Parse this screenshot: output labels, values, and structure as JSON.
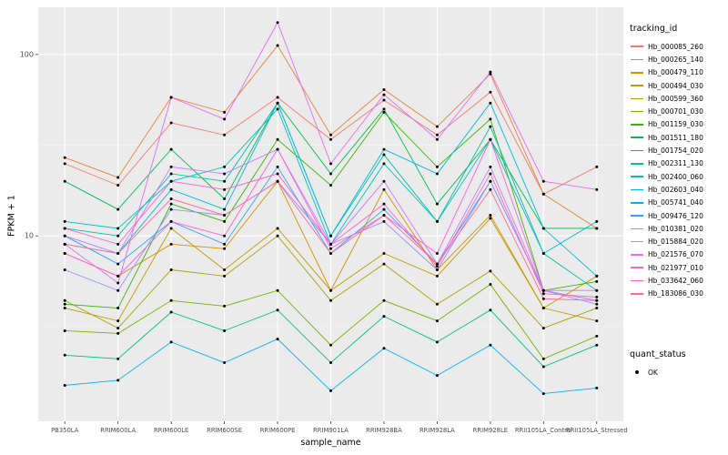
{
  "chart_data": {
    "type": "line",
    "title": "",
    "xlabel": "sample_name",
    "ylabel": "FPKM + 1",
    "y_scale": "log10",
    "y_ticks": [
      10,
      100
    ],
    "y_minor_ticks": [
      3.1623,
      31.623
    ],
    "ylim": [
      0.95,
      182
    ],
    "grid": true,
    "panel_bg": "#EBEBEB",
    "grid_major_color": "#FFFFFF",
    "grid_minor_color": "#F5F5F5",
    "point_color": "#000000",
    "legend_position": "right",
    "legend_title": "tracking_id",
    "quant_legend": {
      "title": "quant_status",
      "items": [
        "OK"
      ]
    },
    "categories": [
      "PB350LA",
      "RRIM600LA",
      "RRIM600LE",
      "RRIM600SE",
      "RRIM600PE",
      "RRIM901LA",
      "RRIM928BA",
      "RRIM928LA",
      "RRIM928LE",
      "RRII105LA_Control",
      "RRII105LA_Stressed"
    ],
    "series": [
      {
        "name": "Hb_000085_260",
        "color": "#F8766D",
        "values": [
          25,
          19,
          42,
          36,
          58,
          34,
          56,
          36,
          62,
          17,
          24
        ]
      },
      {
        "name": "Hb_000265_140",
        "color": "#EA8331",
        "values": [
          27,
          21,
          58,
          48,
          112,
          36,
          64,
          40,
          78,
          17,
          11
        ]
      },
      {
        "name": "Hb_000479_110",
        "color": "#D89000",
        "values": [
          8,
          6,
          9,
          8.5,
          20,
          5,
          18,
          6.5,
          13,
          4,
          3.4
        ]
      },
      {
        "name": "Hb_000494_030",
        "color": "#C09B00",
        "values": [
          4,
          3.4,
          11,
          6.5,
          11,
          5,
          8,
          6,
          12.5,
          4,
          6
        ]
      },
      {
        "name": "Hb_000599_360",
        "color": "#A3A500",
        "values": [
          4.4,
          3.1,
          6.5,
          6,
          10,
          4.4,
          7,
          4.2,
          6.4,
          3.1,
          4
        ]
      },
      {
        "name": "Hb_000701_030",
        "color": "#7CAE00",
        "values": [
          3,
          2.9,
          4.4,
          4.1,
          5,
          2.5,
          4.4,
          3.4,
          5.4,
          2.1,
          2.8
        ]
      },
      {
        "name": "Hb_001159_030",
        "color": "#39B600",
        "values": [
          4.2,
          4,
          15,
          12,
          34,
          19,
          48,
          24,
          44,
          5,
          5.6
        ]
      },
      {
        "name": "Hb_001511_180",
        "color": "#00BB4E",
        "values": [
          20,
          14,
          30,
          16,
          54,
          22,
          50,
          15,
          34,
          11,
          11
        ]
      },
      {
        "name": "Hb_001754_020",
        "color": "#00BF7D",
        "values": [
          2.2,
          2.1,
          3.8,
          3,
          3.9,
          2,
          3.6,
          2.6,
          3.9,
          1.9,
          2.5
        ]
      },
      {
        "name": "Hb_002311_130",
        "color": "#00C1A3",
        "values": [
          11,
          10,
          22,
          20,
          54,
          10,
          28,
          12,
          40,
          8,
          5
        ]
      },
      {
        "name": "Hb_002400_060",
        "color": "#00BFC4",
        "values": [
          12,
          11,
          20,
          24,
          50,
          9,
          25,
          12,
          34,
          8,
          12
        ]
      },
      {
        "name": "Hb_002603_040",
        "color": "#00BAE0",
        "values": [
          9,
          8,
          18,
          14,
          54,
          10,
          30,
          22,
          54,
          11,
          6
        ]
      },
      {
        "name": "Hb_005741_040",
        "color": "#00B0F6",
        "values": [
          1.5,
          1.6,
          2.6,
          2,
          2.7,
          1.4,
          2.4,
          1.7,
          2.5,
          1.35,
          1.45
        ]
      },
      {
        "name": "Hb_009476_120",
        "color": "#35A2FF",
        "values": [
          10,
          7,
          12,
          9,
          24,
          8,
          14,
          7,
          20,
          5,
          4.4
        ]
      },
      {
        "name": "Hb_010381_020",
        "color": "#9590FF",
        "values": [
          6.5,
          5,
          14,
          13,
          20,
          9,
          12,
          6.5,
          20,
          5,
          4.2
        ]
      },
      {
        "name": "Hb_015884_020",
        "color": "#C77CFF",
        "values": [
          10,
          8,
          24,
          22,
          30,
          9,
          20,
          7,
          24,
          5,
          4.4
        ]
      },
      {
        "name": "Hb_021576_070",
        "color": "#E76BF3",
        "values": [
          9,
          5.5,
          58,
          44,
          150,
          25,
          60,
          34,
          80,
          20,
          18
        ]
      },
      {
        "name": "Hb_021977_010",
        "color": "#FA62DB",
        "values": [
          8,
          6,
          12,
          10,
          30,
          8.5,
          13,
          8,
          34,
          5,
          5
        ]
      },
      {
        "name": "Hb_033642_060",
        "color": "#FF61CC",
        "values": [
          11,
          9,
          20,
          18,
          22,
          9,
          15,
          6.8,
          22,
          4.8,
          4.6
        ]
      },
      {
        "name": "Hb_183086_030",
        "color": "#FF6A98",
        "values": [
          9,
          8,
          16,
          13,
          20,
          8,
          13,
          7,
          18,
          4.5,
          4.4
        ]
      }
    ]
  }
}
